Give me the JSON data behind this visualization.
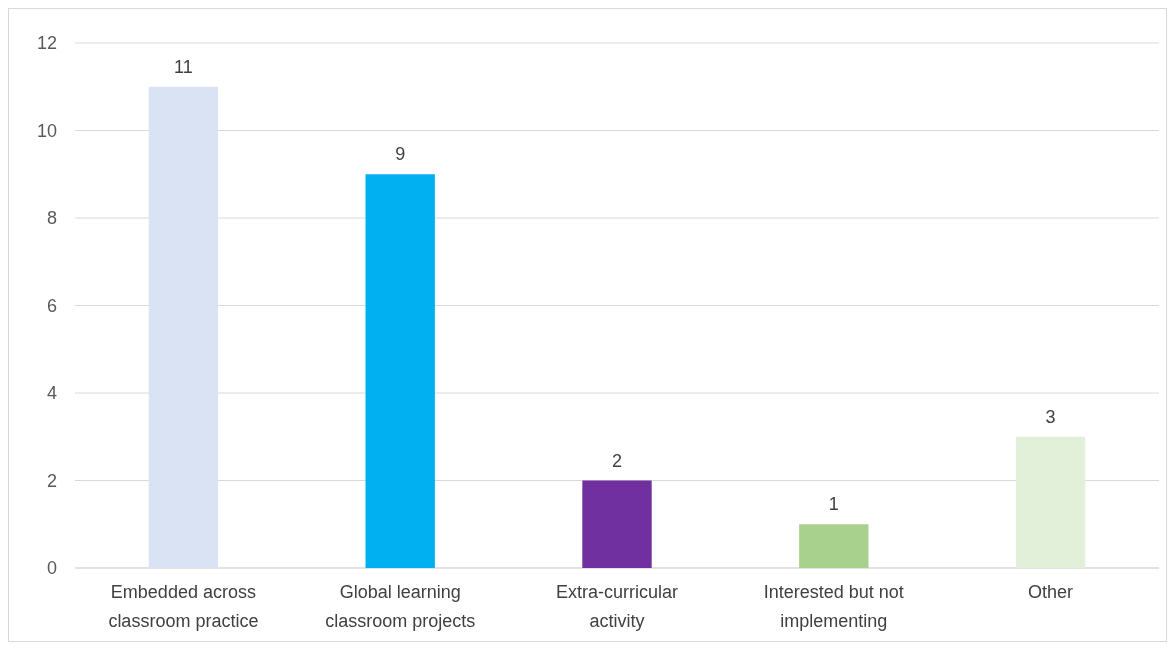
{
  "chart_data": {
    "type": "bar",
    "categories": [
      "Embedded across classroom practice",
      "Global learning classroom projects",
      "Extra-curricular activity",
      "Interested but not implementing",
      "Other"
    ],
    "values": [
      11,
      9,
      2,
      1,
      3
    ],
    "colors": [
      "#dae3f3",
      "#00b0f0",
      "#7030a0",
      "#a9d18e",
      "#e2f0d9"
    ],
    "ylim": [
      0,
      12
    ],
    "yticks": [
      0,
      2,
      4,
      6,
      8,
      10,
      12
    ],
    "grid": "y",
    "data_labels": true
  }
}
